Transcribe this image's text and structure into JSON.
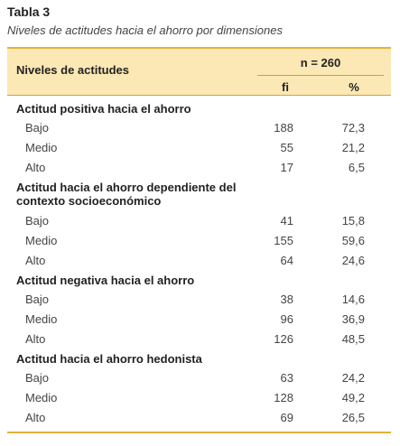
{
  "header": {
    "title": "Tabla 3",
    "subtitle": "Niveles de actitudes hacia el ahorro por dimensiones"
  },
  "table": {
    "column_header": "Niveles de actitudes",
    "sample": "n = 260",
    "columns": [
      "fi",
      "%"
    ],
    "groups": [
      {
        "title": "Actitud positiva hacia el ahorro",
        "rows": [
          [
            "Bajo",
            "188",
            "72,3"
          ],
          [
            "Medio",
            "55",
            "21,2"
          ],
          [
            "Alto",
            "17",
            "6,5"
          ]
        ]
      },
      {
        "title": "Actitud hacia el ahorro dependiente del contexto socioeconómico",
        "rows": [
          [
            "Bajo",
            "41",
            "15,8"
          ],
          [
            "Medio",
            "155",
            "59,6"
          ],
          [
            "Alto",
            "64",
            "24,6"
          ]
        ]
      },
      {
        "title": "Actitud negativa hacia el ahorro",
        "rows": [
          [
            "Bajo",
            "38",
            "14,6"
          ],
          [
            "Medio",
            "96",
            "36,9"
          ],
          [
            "Alto",
            "126",
            "48,5"
          ]
        ]
      },
      {
        "title": "Actitud hacia el ahorro hedonista",
        "rows": [
          [
            "Bajo",
            "63",
            "24,2"
          ],
          [
            "Medio",
            "128",
            "49,2"
          ],
          [
            "Alto",
            "69",
            "26,5"
          ]
        ]
      }
    ]
  }
}
